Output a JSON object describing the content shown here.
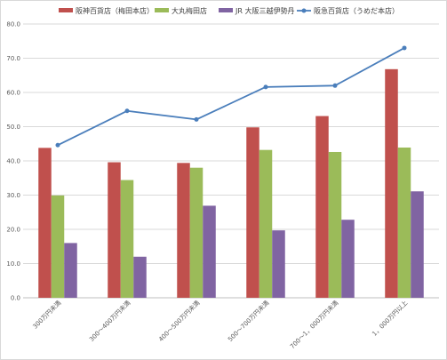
{
  "chart_data": {
    "type": "bar",
    "title": "",
    "xlabel": "",
    "ylabel": "",
    "ylim": [
      0,
      80
    ],
    "yticks": [
      "0.0",
      "10.0",
      "20.0",
      "30.0",
      "40.0",
      "50.0",
      "60.0",
      "70.0",
      "80.0"
    ],
    "grid": true,
    "legend_position": "top",
    "categories": [
      "300万円未満",
      "300～400万円未満",
      "400～500万円未満",
      "500～700万円未満",
      "700～1，000万円未満",
      "1，000万円以上"
    ],
    "series": [
      {
        "name": "阪神百貨店（梅田本店）",
        "type": "bar",
        "color": "#c0504d",
        "values": [
          43.8,
          39.6,
          39.4,
          49.8,
          53.1,
          66.8
        ]
      },
      {
        "name": "大丸梅田店",
        "type": "bar",
        "color": "#9bbb59",
        "values": [
          29.9,
          34.4,
          38.0,
          43.2,
          42.6,
          43.9
        ]
      },
      {
        "name": "JR 大阪三越伊勢丹",
        "type": "bar",
        "color": "#8064a2",
        "values": [
          16.0,
          12.0,
          26.9,
          19.7,
          22.8,
          31.1
        ]
      },
      {
        "name": "阪急百貨店（うめだ本店）",
        "type": "line",
        "color": "#4a7ebb",
        "values": [
          44.6,
          54.6,
          52.1,
          61.6,
          62.0,
          73.0
        ]
      }
    ]
  }
}
